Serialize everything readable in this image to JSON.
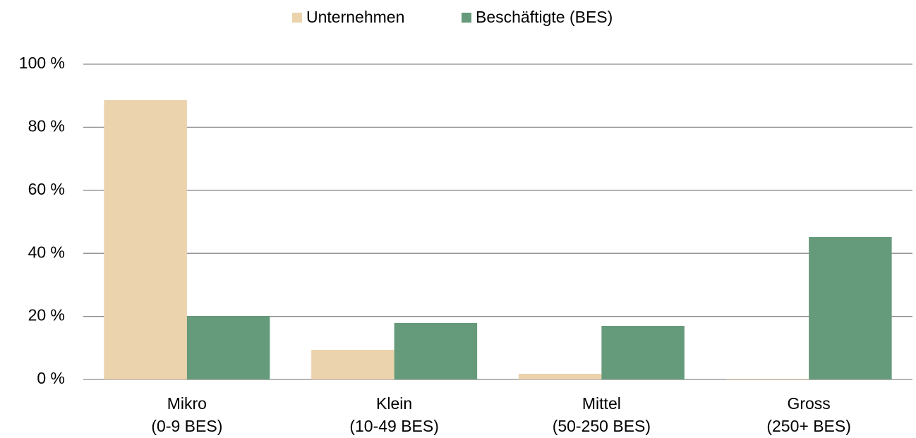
{
  "chart_data": {
    "type": "bar",
    "categories": [
      [
        "Mikro",
        "(0-9 BES)"
      ],
      [
        "Klein",
        "(10-49 BES)"
      ],
      [
        "Mittel",
        "(50-250 BES)"
      ],
      [
        "Gross",
        "(250+ BES)"
      ]
    ],
    "series": [
      {
        "name": "Unternehmen",
        "color": "#ebd3ad",
        "values": [
          88.6,
          9.4,
          1.8,
          0.2
        ]
      },
      {
        "name": "Beschäftigte (BES)",
        "color": "#659b7a",
        "values": [
          20.1,
          17.9,
          17.0,
          45.2
        ]
      }
    ],
    "ylim": [
      0,
      100
    ],
    "yticks": [
      {
        "value": 0,
        "label": "0 %"
      },
      {
        "value": 20,
        "label": "20 %"
      },
      {
        "value": 40,
        "label": "40 %"
      },
      {
        "value": 60,
        "label": "60 %"
      },
      {
        "value": 80,
        "label": "80 %"
      },
      {
        "value": 100,
        "label": "100 %"
      }
    ],
    "grid": true,
    "legend": "top"
  }
}
